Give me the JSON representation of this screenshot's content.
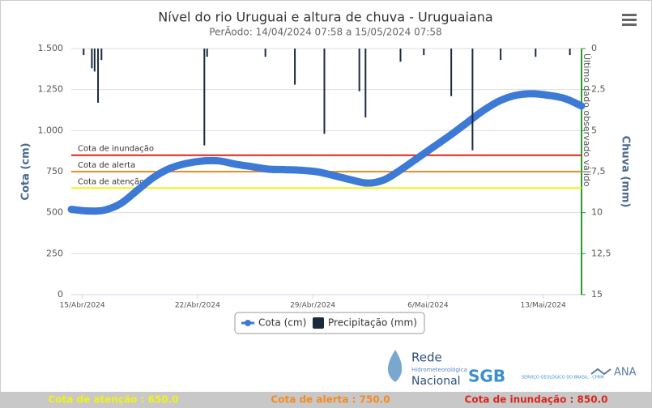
{
  "chart_data": {
    "type": "line",
    "title": "Nível do rio Uruguai e altura de chuva - Uruguaiana",
    "subtitle": "PerÃodo: 14/04/2024 07:58 a 15/05/2024 07:58",
    "y_axis_label": "Cota (cm)",
    "y2_axis_label": "Chuva (mm)",
    "annotation": "Último dado observado válido",
    "xlim": [
      "2024-04-14T07:58",
      "2024-05-15T07:58"
    ],
    "xticks": [
      {
        "value": "2024-04-15T00:00",
        "label": "15/Abr/2024"
      },
      {
        "value": "2024-04-22T00:00",
        "label": "22/Abr/2024"
      },
      {
        "value": "2024-04-29T00:00",
        "label": "29/Abr/2024"
      },
      {
        "value": "2024-05-06T00:00",
        "label": "6/Mai/2024"
      },
      {
        "value": "2024-05-13T00:00",
        "label": "13/Mai/2024"
      }
    ],
    "ylim": [
      0,
      1500
    ],
    "yticks": [
      0,
      250,
      500,
      750,
      {
        "value": 1000,
        "label": "1.000"
      },
      {
        "value": 1250,
        "label": "1.250"
      },
      {
        "value": 1500,
        "label": "1.500"
      }
    ],
    "y2lim": [
      0,
      15
    ],
    "y2_reversed": true,
    "y2ticks": [
      0,
      {
        "value": 2.5,
        "label": "2,5"
      },
      5,
      {
        "value": 7.5,
        "label": "7,5"
      },
      10,
      {
        "value": 12.5,
        "label": "12,5"
      },
      15
    ],
    "grid": true,
    "series": [
      {
        "name": "Cota (cm)",
        "type": "line",
        "color": "#3d7ad6",
        "x": [
          "2024-04-14T07:58",
          "2024-04-15T07:58",
          "2024-04-16T07:58",
          "2024-04-17T07:58",
          "2024-04-18T07:58",
          "2024-04-19T07:58",
          "2024-04-20T07:58",
          "2024-04-21T07:58",
          "2024-04-22T07:58",
          "2024-04-23T07:58",
          "2024-04-24T07:58",
          "2024-04-25T07:58",
          "2024-04-26T07:58",
          "2024-04-27T07:58",
          "2024-04-28T07:58",
          "2024-04-29T07:58",
          "2024-04-30T07:58",
          "2024-05-01T07:58",
          "2024-05-02T07:58",
          "2024-05-03T07:58",
          "2024-05-04T07:58",
          "2024-05-05T07:58",
          "2024-05-06T07:58",
          "2024-05-07T07:58",
          "2024-05-08T07:58",
          "2024-05-09T07:58",
          "2024-05-10T07:58",
          "2024-05-11T07:58",
          "2024-05-12T07:58",
          "2024-05-13T07:58",
          "2024-05-14T07:58",
          "2024-05-15T07:58"
        ],
        "values": [
          520,
          510,
          515,
          555,
          635,
          715,
          770,
          800,
          815,
          815,
          795,
          780,
          765,
          762,
          758,
          748,
          725,
          700,
          680,
          700,
          760,
          830,
          900,
          970,
          1045,
          1120,
          1180,
          1215,
          1225,
          1215,
          1195,
          1150
        ]
      },
      {
        "name": "Precipitação (mm)",
        "type": "bar",
        "axis": "y2",
        "color": "#1b2a40",
        "x": [
          "2024-04-15T02:00",
          "2024-04-15T14:00",
          "2024-04-15T18:00",
          "2024-04-15T23:00",
          "2024-04-16T04:00",
          "2024-04-22T10:00",
          "2024-04-22T14:00",
          "2024-04-26T03:00",
          "2024-04-27T22:00",
          "2024-04-29T17:00",
          "2024-05-01T20:00",
          "2024-05-02T05:00",
          "2024-05-04T08:00",
          "2024-05-05T18:00",
          "2024-05-07T10:00",
          "2024-05-08T17:00",
          "2024-05-10T10:00",
          "2024-05-12T13:00",
          "2024-05-14T15:00"
        ],
        "values": [
          0.4,
          1.2,
          1.4,
          3.3,
          0.7,
          5.9,
          0.5,
          0.5,
          2.2,
          5.2,
          2.6,
          4.2,
          0.8,
          0.4,
          2.9,
          6.2,
          0.7,
          0.5,
          0.4
        ]
      }
    ],
    "plot_lines": [
      {
        "name": "Cota de inundação",
        "value": 850,
        "color": "#d9261c",
        "footer": "Cota de inundação : 850.0"
      },
      {
        "name": "Cota de alerta",
        "value": 750,
        "color": "#f58a1f",
        "footer": "Cota de alerta : 750.0"
      },
      {
        "name": "Cota de atenção",
        "value": 650,
        "color": "#f2f21a",
        "footer": "Cota de atenção : 650.0"
      }
    ],
    "logos": {
      "rede": [
        "Rede",
        "Hidrometeorológica",
        "Nacional"
      ],
      "sgb": "SGB",
      "sgb_text": "SERVIÇO GEOLÓGICO DO BRASIL - CPRM",
      "ana": "ANA"
    }
  }
}
